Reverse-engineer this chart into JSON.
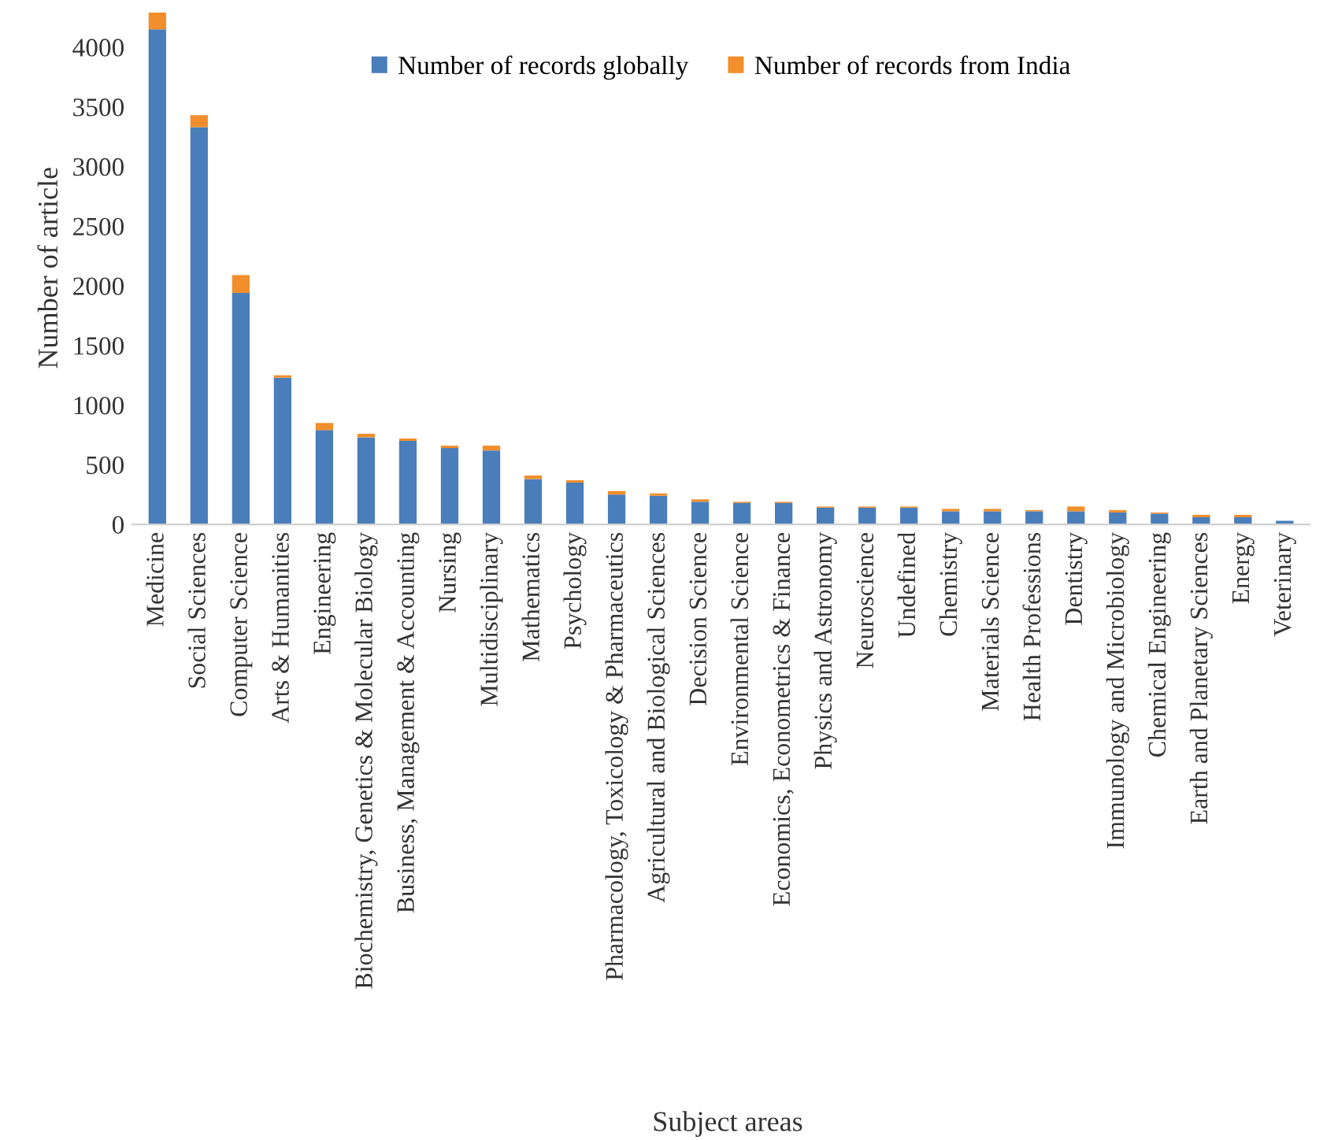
{
  "chart_data": {
    "type": "bar",
    "stacked": true,
    "xlabel": "Subject areas",
    "ylabel": "Number of article",
    "categories": [
      "Medicine",
      "Social Sciences",
      "Computer Science",
      "Arts & Humanities",
      "Engineering",
      "Biochemistry, Genetics & Molecular Biology",
      "Business, Management & Accounting",
      "Nursing",
      "Multidisciplinary",
      "Mathematics",
      "Psychology",
      "Pharmacology, Toxicology & Pharmaceutics",
      "Agricultural and Biological Sciences",
      "Decision Science",
      "Environmental Science",
      "Economics, Econometrics & Finance",
      "Physics and Astronomy",
      "Neuroscience",
      "Undefined",
      "Chemistry",
      "Materials Science",
      "Health Professions",
      "Dentistry",
      "Immunology and Microbiology",
      "Chemical Engineering",
      "Earth and Planetary Sciences",
      "Energy",
      "Veterinary"
    ],
    "series": [
      {
        "name": "Number of records globally",
        "color": "#4a7ebb",
        "values": [
          4150,
          3330,
          1940,
          1230,
          790,
          730,
          700,
          640,
          620,
          380,
          350,
          250,
          240,
          190,
          180,
          180,
          140,
          140,
          140,
          110,
          110,
          110,
          110,
          100,
          90,
          60,
          60,
          30
        ]
      },
      {
        "name": "Number of records from India",
        "color": "#f28e2b",
        "values": [
          140,
          100,
          150,
          20,
          60,
          30,
          20,
          20,
          40,
          30,
          20,
          30,
          20,
          20,
          10,
          10,
          10,
          10,
          10,
          20,
          20,
          10,
          40,
          20,
          10,
          20,
          20,
          0
        ]
      }
    ],
    "ylim": [
      0,
      4300
    ],
    "yticks": [
      0,
      500,
      1000,
      1500,
      2000,
      2500,
      3000,
      3500,
      4000
    ],
    "grid": false,
    "legend": "top"
  }
}
